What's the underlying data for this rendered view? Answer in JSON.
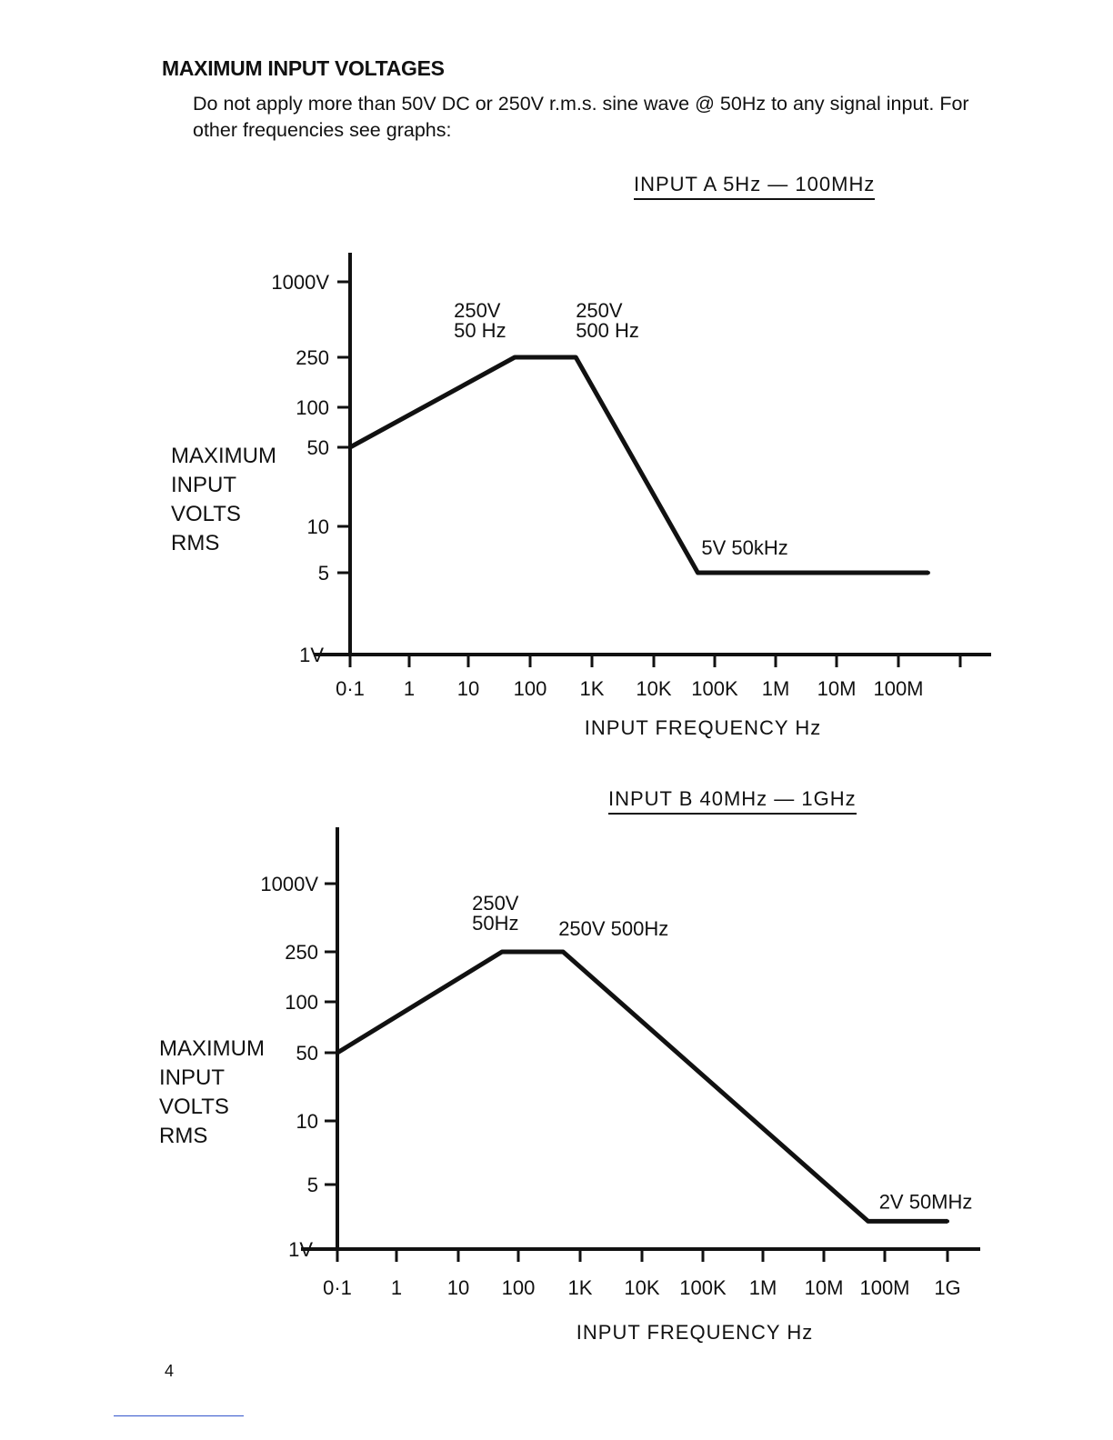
{
  "heading": "MAXIMUM INPUT VOLTAGES",
  "intro": "Do not apply more than 50V DC or 250V r.m.s. sine wave @ 50Hz to any signal input. For other frequencies see graphs:",
  "page_number": "4",
  "chart_data": [
    {
      "type": "line",
      "title": "INPUT A   5Hz — 100MHz",
      "ylabel": "MAXIMUM\nINPUT\nVOLTS\nRMS",
      "xlabel": "INPUT FREQUENCY Hz",
      "x_scale": "log",
      "y_scale": "nonlinear",
      "x_ticks": [
        "0·1",
        "1",
        "10",
        "100",
        "1K",
        "10K",
        "100K",
        "1M",
        "10M",
        "100M",
        ""
      ],
      "y_ticks": [
        "1000V",
        "250",
        "100",
        "50",
        "10",
        "5",
        "1V"
      ],
      "x": [
        0.1,
        50,
        500,
        50000,
        300000000
      ],
      "y": [
        50,
        250,
        250,
        5,
        5
      ],
      "annotations": [
        {
          "text": "250V\n50 Hz",
          "x": 50,
          "y": 250
        },
        {
          "text": "250V\n500 Hz",
          "x": 500,
          "y": 250
        },
        {
          "text": "5V   50kHz",
          "x": 50000,
          "y": 5
        }
      ],
      "grid": false
    },
    {
      "type": "line",
      "title": "INPUT B  40MHz  — 1GHz",
      "ylabel": "MAXIMUM\nINPUT\nVOLTS\nRMS",
      "xlabel": "INPUT FREQUENCY Hz",
      "x_scale": "log",
      "y_scale": "nonlinear",
      "x_ticks": [
        "0·1",
        "1",
        "10",
        "100",
        "1K",
        "10K",
        "100K",
        "1M",
        "10M",
        "100M",
        "1G"
      ],
      "y_ticks": [
        "1000V",
        "250",
        "100",
        "50",
        "10",
        "5",
        "1V"
      ],
      "x": [
        0.1,
        50,
        500,
        50000000,
        1000000000
      ],
      "y": [
        50,
        250,
        250,
        2,
        2
      ],
      "annotations": [
        {
          "text": "250V\n50Hz",
          "x": 50,
          "y": 250
        },
        {
          "text": "250V  500Hz",
          "x": 500,
          "y": 250
        },
        {
          "text": "2V 50MHz",
          "x": 50000000,
          "y": 2
        }
      ],
      "grid": false
    }
  ]
}
